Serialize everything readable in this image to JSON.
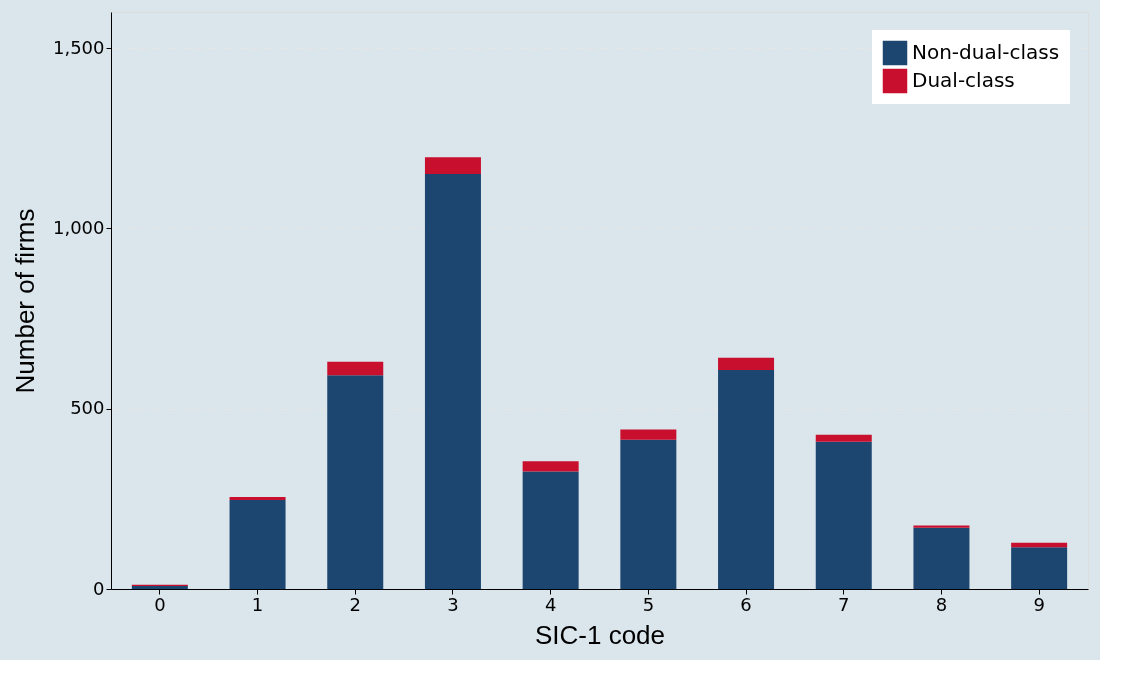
{
  "chart_data": {
    "type": "bar",
    "stacked": true,
    "xlabel": "SIC-1 code",
    "ylabel": "Number of firms",
    "categories": [
      "0",
      "1",
      "2",
      "3",
      "4",
      "5",
      "6",
      "7",
      "8",
      "9"
    ],
    "series": [
      {
        "name": "Non-dual-class",
        "color": "#1c4670",
        "values": [
          8,
          247,
          593,
          1151,
          326,
          414,
          607,
          408,
          170,
          116
        ]
      },
      {
        "name": "Dual-class",
        "color": "#c8102e",
        "values": [
          4,
          8,
          37,
          46,
          28,
          28,
          34,
          20,
          6,
          12
        ]
      }
    ],
    "ylim": [
      0,
      1600
    ],
    "yticks": [
      0,
      {
        "value": 500,
        "label": "500"
      },
      {
        "value": 1000,
        "label": "1,000"
      },
      {
        "value": 1500,
        "label": "1,500"
      }
    ],
    "grid": "y",
    "legend": "top right"
  }
}
